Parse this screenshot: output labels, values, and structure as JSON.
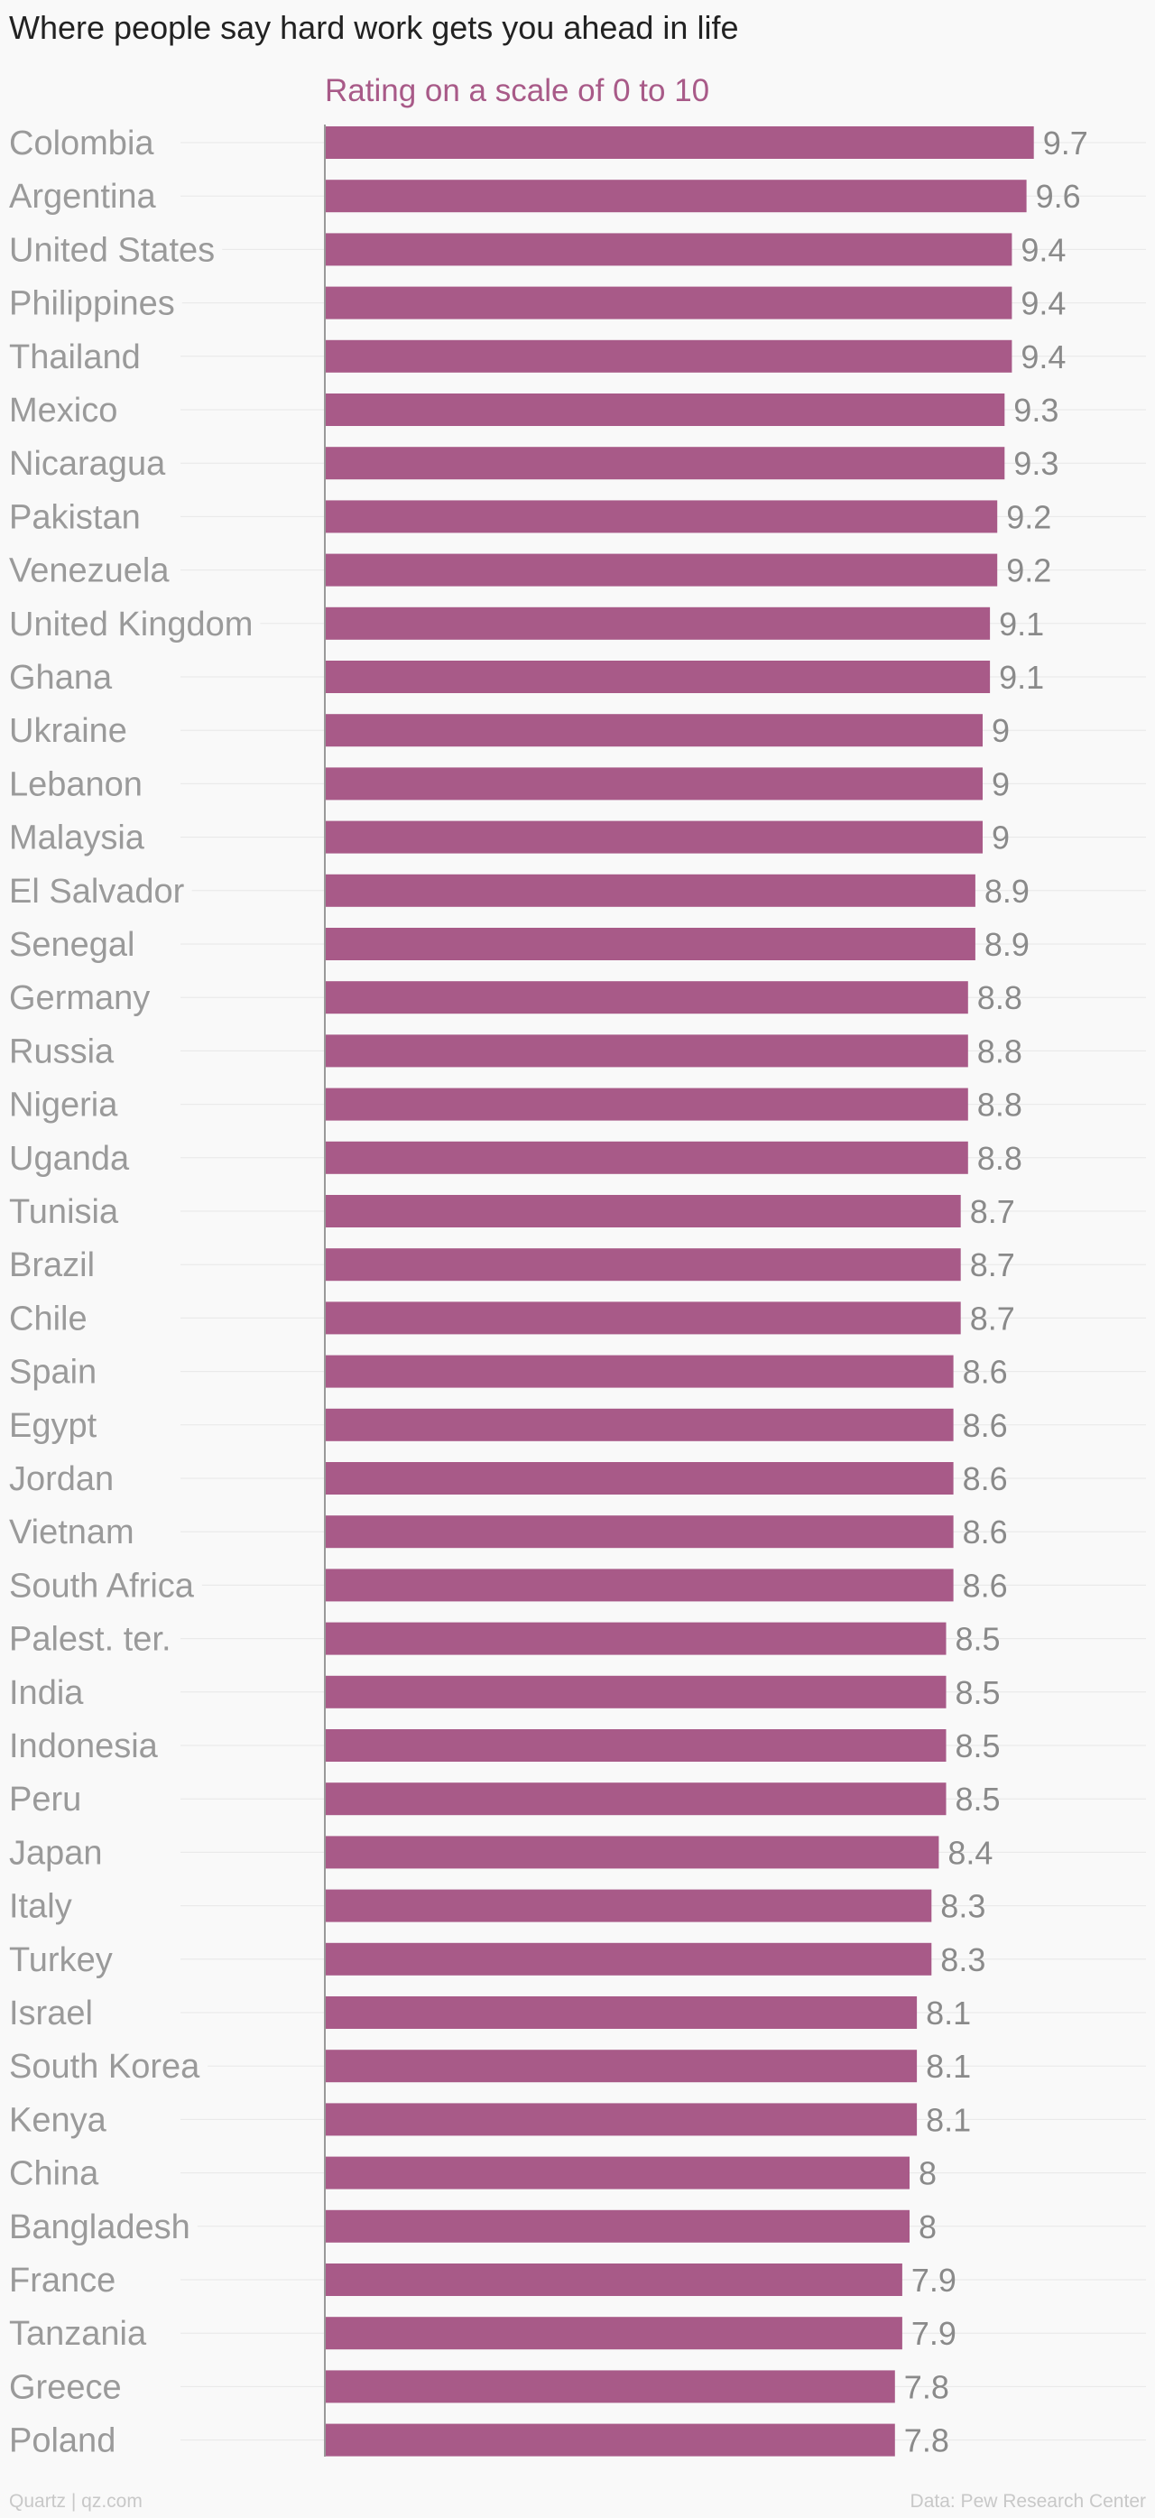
{
  "title": "Where people say hard work gets you ahead in life",
  "footer": {
    "source_left": "Quartz | qz.com",
    "source_right": "Data: Pew Research Center"
  },
  "colors": {
    "bar": "#a85a88",
    "title": "#222222",
    "subtitle": "#a85a88",
    "category_label": "#9a9a9a",
    "value_label": "#8a8a8a",
    "gridline": "#e8e8e8",
    "axis": "#999999",
    "footer": "#c8c8c8",
    "background": "#f9f9f9"
  },
  "chart_data": {
    "type": "bar",
    "orientation": "horizontal",
    "title": "Where people say hard work gets you ahead in life",
    "subtitle": "Rating on a scale of 0 to 10",
    "xlabel": "",
    "ylabel": "",
    "xlim": [
      0,
      10
    ],
    "grid": true,
    "legend": "none",
    "categories": [
      "Colombia",
      "Argentina",
      "United States",
      "Philippines",
      "Thailand",
      "Mexico",
      "Nicaragua",
      "Pakistan",
      "Venezuela",
      "United Kingdom",
      "Ghana",
      "Ukraine",
      "Lebanon",
      "Malaysia",
      "El Salvador",
      "Senegal",
      "Germany",
      "Russia",
      "Nigeria",
      "Uganda",
      "Tunisia",
      "Brazil",
      "Chile",
      "Spain",
      "Egypt",
      "Jordan",
      "Vietnam",
      "South Africa",
      "Palest. ter.",
      "India",
      "Indonesia",
      "Peru",
      "Japan",
      "Italy",
      "Turkey",
      "Israel",
      "South Korea",
      "Kenya",
      "China",
      "Bangladesh",
      "France",
      "Tanzania",
      "Greece",
      "Poland"
    ],
    "values": [
      9.7,
      9.6,
      9.4,
      9.4,
      9.4,
      9.3,
      9.3,
      9.2,
      9.2,
      9.1,
      9.1,
      9,
      9,
      9,
      8.9,
      8.9,
      8.8,
      8.8,
      8.8,
      8.8,
      8.7,
      8.7,
      8.7,
      8.6,
      8.6,
      8.6,
      8.6,
      8.6,
      8.5,
      8.5,
      8.5,
      8.5,
      8.4,
      8.3,
      8.3,
      8.1,
      8.1,
      8.1,
      8,
      8,
      7.9,
      7.9,
      7.8,
      7.8
    ]
  }
}
